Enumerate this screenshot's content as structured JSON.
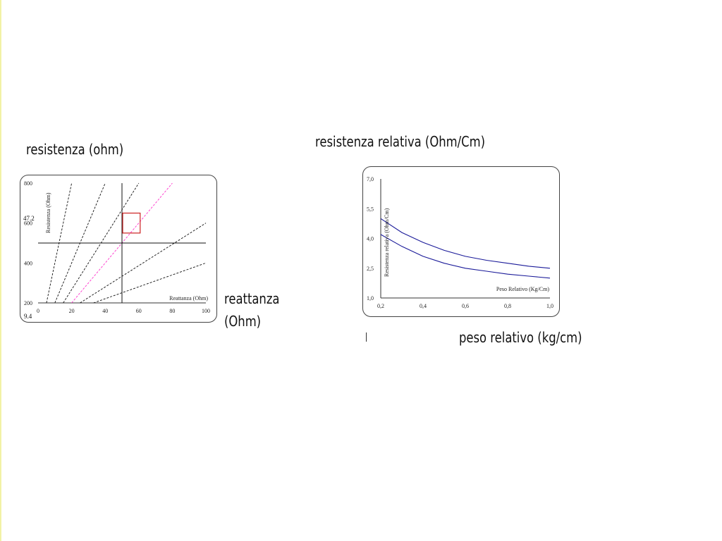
{
  "left_caption": "resistenza (ohm)",
  "right_caption": "resistenza relativa (Ohm/Cm)",
  "reactance_caption_line1": "reattanza",
  "reactance_caption_line2": "(Ohm)",
  "weight_caption": "peso relativo (kg/cm)",
  "left_side_text": "47.2",
  "left_bottom_text": "9.4",
  "colors": {
    "lines": "#111111",
    "pink_line": "#ff33cc",
    "box": "#cc2222",
    "curves": "#1a1a99"
  },
  "chart_data": [
    {
      "type": "line",
      "title": "",
      "xlabel": "Reattanza (Ohm)",
      "ylabel": "Resistenza (Ohm)",
      "xlim": [
        0,
        100
      ],
      "ylim": [
        200,
        800
      ],
      "x_ticks": [
        "0",
        "20",
        "40",
        "60",
        "80",
        "100"
      ],
      "y_ticks": [
        "800",
        "600",
        "400",
        "200"
      ],
      "series": [
        {
          "style": "dashed",
          "points": [
            [
              5,
              200
            ],
            [
              20,
              800
            ]
          ]
        },
        {
          "style": "dashed",
          "points": [
            [
              10,
              200
            ],
            [
              40,
              800
            ]
          ]
        },
        {
          "style": "dashed",
          "points": [
            [
              15,
              200
            ],
            [
              60,
              800
            ]
          ]
        },
        {
          "style": "dashed-pink",
          "points": [
            [
              20,
              200
            ],
            [
              80,
              800
            ]
          ]
        },
        {
          "style": "dashed",
          "points": [
            [
              25,
              200
            ],
            [
              100,
              600
            ]
          ]
        },
        {
          "style": "dashed",
          "points": [
            [
              33,
              200
            ],
            [
              100,
              400
            ]
          ]
        }
      ],
      "reference_lines": {
        "vertical_x": 50,
        "horizontal_y": 500
      },
      "highlight_box": {
        "x": [
          50,
          60
        ],
        "y": [
          550,
          650
        ]
      }
    },
    {
      "type": "line",
      "title": "",
      "xlabel": "Peso Relativo (Kg/Cm)",
      "ylabel": "Resistenza relativa (Ohm/Cm)",
      "xlim": [
        0.2,
        1.0
      ],
      "ylim": [
        1.0,
        7.0
      ],
      "x_ticks": [
        "0,2",
        "0,4",
        "0,6",
        "0,8",
        "1,0"
      ],
      "y_ticks": [
        "7,0",
        "5,5",
        "4,0",
        "2,5",
        "1,0"
      ],
      "series": [
        {
          "x": [
            0.2,
            0.3,
            0.4,
            0.5,
            0.6,
            0.7,
            0.8,
            0.9,
            1.0
          ],
          "values": [
            5.0,
            4.3,
            3.8,
            3.4,
            3.1,
            2.9,
            2.75,
            2.6,
            2.5
          ]
        },
        {
          "x": [
            0.2,
            0.3,
            0.4,
            0.5,
            0.6,
            0.7,
            0.8,
            0.9,
            1.0
          ],
          "values": [
            4.2,
            3.6,
            3.1,
            2.75,
            2.5,
            2.35,
            2.2,
            2.1,
            2.0
          ]
        }
      ]
    }
  ]
}
